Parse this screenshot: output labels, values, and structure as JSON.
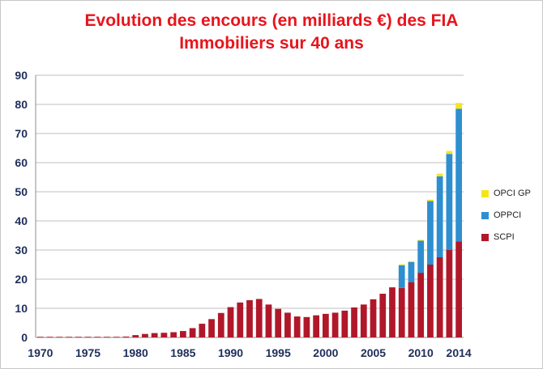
{
  "title_line1": "Evolution des encours (en milliards €) des FIA",
  "title_line2": "Immobiliers sur 40 ans",
  "colors": {
    "SCPI": "#b0182a",
    "OPPCI": "#2e8fd0",
    "OPCI GP": "#f4e51a",
    "title": "#e8141c",
    "grid": "#bfbfbf",
    "axis_text": "#1f2d5a"
  },
  "chart_data": {
    "type": "bar",
    "stacked": true,
    "title": "Evolution des encours (en milliards €) des FIA Immobiliers sur 40 ans",
    "categories": [
      "1970",
      "1971",
      "1972",
      "1973",
      "1974",
      "1975",
      "1976",
      "1977",
      "1978",
      "1979",
      "1980",
      "1981",
      "1982",
      "1983",
      "1984",
      "1985",
      "1986",
      "1987",
      "1988",
      "1989",
      "1990",
      "1991",
      "1992",
      "1993",
      "1994",
      "1995",
      "1996",
      "1997",
      "1998",
      "1999",
      "2000",
      "2001",
      "2002",
      "2003",
      "2004",
      "2005",
      "2006",
      "2007",
      "2008",
      "2009",
      "2010",
      "2011",
      "2012",
      "2013",
      "2014"
    ],
    "x_tick_labels": [
      "1970",
      "1975",
      "1980",
      "1985",
      "1990",
      "1995",
      "2000",
      "2005",
      "2010",
      "2014"
    ],
    "x_tick_indices": [
      0,
      5,
      10,
      15,
      20,
      25,
      30,
      35,
      40,
      44
    ],
    "ylim": [
      0,
      90
    ],
    "y_ticks": [
      0,
      10,
      20,
      30,
      40,
      50,
      60,
      70,
      80,
      90
    ],
    "grid": true,
    "legend_position": "right",
    "series": [
      {
        "name": "SCPI",
        "values": [
          0.1,
          0.1,
          0.1,
          0.1,
          0.1,
          0.1,
          0.1,
          0.1,
          0.2,
          0.3,
          0.8,
          1.2,
          1.5,
          1.6,
          1.8,
          2.2,
          3.2,
          4.7,
          6.3,
          8.4,
          10.4,
          12.0,
          12.8,
          13.2,
          11.3,
          9.8,
          8.5,
          7.2,
          7.0,
          7.6,
          8.1,
          8.5,
          9.2,
          10.3,
          11.3,
          13.1,
          15.0,
          17.2,
          17.0,
          19.0,
          22.2,
          25.0,
          27.5,
          30.0,
          33.0
        ]
      },
      {
        "name": "OPPCI",
        "values": [
          0,
          0,
          0,
          0,
          0,
          0,
          0,
          0,
          0,
          0,
          0,
          0,
          0,
          0,
          0,
          0,
          0,
          0,
          0,
          0,
          0,
          0,
          0,
          0,
          0,
          0,
          0,
          0,
          0,
          0,
          0,
          0,
          0,
          0,
          0,
          0,
          0,
          0,
          7.8,
          6.9,
          11.0,
          21.8,
          27.8,
          33.0,
          45.5
        ]
      },
      {
        "name": "OPCI GP",
        "values": [
          0,
          0,
          0,
          0,
          0,
          0,
          0,
          0,
          0,
          0,
          0,
          0,
          0,
          0,
          0,
          0,
          0,
          0,
          0,
          0,
          0,
          0,
          0,
          0,
          0,
          0,
          0,
          0,
          0,
          0,
          0,
          0,
          0,
          0,
          0,
          0,
          0,
          0,
          0.3,
          0.3,
          0.3,
          0.5,
          0.9,
          1.0,
          2.0
        ]
      }
    ]
  }
}
